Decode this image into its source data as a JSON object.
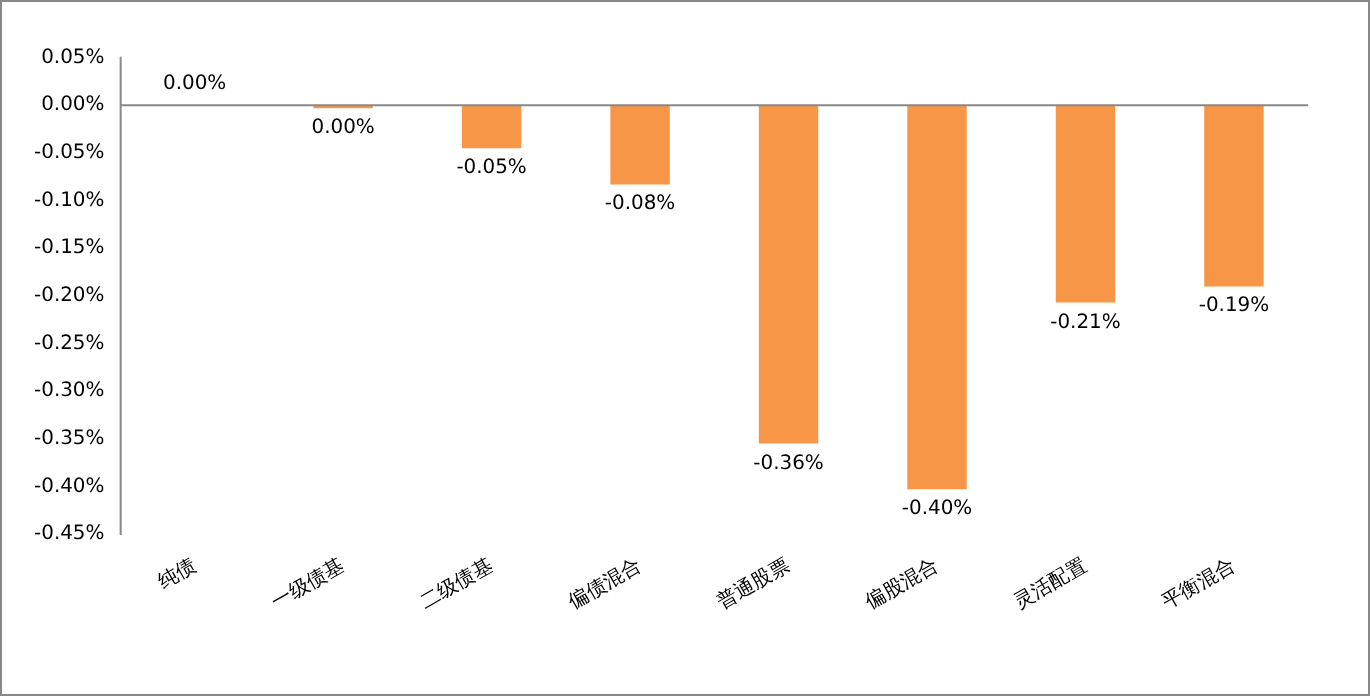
{
  "chart_data": {
    "type": "bar",
    "categories": [
      "纯债",
      "一级债基",
      "二级债基",
      "偏债混合",
      "普通股票",
      "偏股混合",
      "灵活配置",
      "平衡混合"
    ],
    "values": [
      0,
      -0.003,
      -0.045,
      -0.083,
      -0.355,
      -0.403,
      -0.207,
      -0.19
    ],
    "value_labels": [
      "0.00%",
      "0.00%",
      "-0.05%",
      "-0.08%",
      "-0.36%",
      "-0.40%",
      "-0.21%",
      "-0.19%"
    ],
    "color": "#f79646",
    "ylim": [
      -0.45,
      0.05
    ],
    "yticks": [
      {
        "value": 0.05,
        "label": "0.05%"
      },
      {
        "value": 0,
        "label": "0.00%"
      },
      {
        "value": -0.05,
        "label": "-0.05%"
      },
      {
        "value": -0.1,
        "label": "-0.10%"
      },
      {
        "value": -0.15,
        "label": "-0.15%"
      },
      {
        "value": -0.2,
        "label": "-0.20%"
      },
      {
        "value": -0.25,
        "label": "-0.25%"
      },
      {
        "value": -0.3,
        "label": "-0.30%"
      },
      {
        "value": -0.35,
        "label": "-0.35%"
      },
      {
        "value": -0.4,
        "label": "-0.40%"
      },
      {
        "value": -0.45,
        "label": "-0.45%"
      }
    ],
    "legend": false
  }
}
